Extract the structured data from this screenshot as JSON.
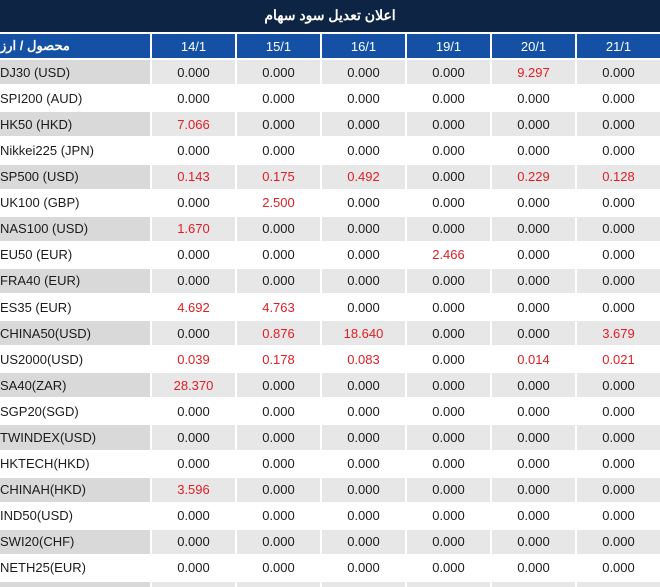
{
  "title": "اعلان تعديل سود سهام",
  "table": {
    "name_header": "محصول / ارز",
    "date_headers": [
      "14/1",
      "15/1",
      "16/1",
      "19/1",
      "20/1",
      "21/1"
    ],
    "rows": [
      {
        "name": "DJ30 (USD)",
        "values": [
          "0.000",
          "0.000",
          "0.000",
          "0.000",
          "9.297",
          "0.000"
        ]
      },
      {
        "name": "SPI200 (AUD)",
        "values": [
          "0.000",
          "0.000",
          "0.000",
          "0.000",
          "0.000",
          "0.000"
        ]
      },
      {
        "name": "HK50 (HKD)",
        "values": [
          "7.066",
          "0.000",
          "0.000",
          "0.000",
          "0.000",
          "0.000"
        ]
      },
      {
        "name": "Nikkei225 (JPN)",
        "values": [
          "0.000",
          "0.000",
          "0.000",
          "0.000",
          "0.000",
          "0.000"
        ]
      },
      {
        "name": "SP500 (USD)",
        "values": [
          "0.143",
          "0.175",
          "0.492",
          "0.000",
          "0.229",
          "0.128"
        ]
      },
      {
        "name": "UK100 (GBP)",
        "values": [
          "0.000",
          "2.500",
          "0.000",
          "0.000",
          "0.000",
          "0.000"
        ]
      },
      {
        "name": "NAS100 (USD)",
        "values": [
          "1.670",
          "0.000",
          "0.000",
          "0.000",
          "0.000",
          "0.000"
        ]
      },
      {
        "name": "EU50 (EUR)",
        "values": [
          "0.000",
          "0.000",
          "0.000",
          "2.466",
          "0.000",
          "0.000"
        ]
      },
      {
        "name": "FRA40 (EUR)",
        "values": [
          "0.000",
          "0.000",
          "0.000",
          "0.000",
          "0.000",
          "0.000"
        ]
      },
      {
        "name": "ES35 (EUR)",
        "values": [
          "4.692",
          "4.763",
          "0.000",
          "0.000",
          "0.000",
          "0.000"
        ]
      },
      {
        "name": "CHINA50(USD)",
        "values": [
          "0.000",
          "0.876",
          "18.640",
          "0.000",
          "0.000",
          "3.679"
        ]
      },
      {
        "name": "US2000(USD)",
        "values": [
          "0.039",
          "0.178",
          "0.083",
          "0.000",
          "0.014",
          "0.021"
        ]
      },
      {
        "name": "SA40(ZAR)",
        "values": [
          "28.370",
          "0.000",
          "0.000",
          "0.000",
          "0.000",
          "0.000"
        ]
      },
      {
        "name": "SGP20(SGD)",
        "values": [
          "0.000",
          "0.000",
          "0.000",
          "0.000",
          "0.000",
          "0.000"
        ]
      },
      {
        "name": "TWINDEX(USD)",
        "values": [
          "0.000",
          "0.000",
          "0.000",
          "0.000",
          "0.000",
          "0.000"
        ]
      },
      {
        "name": "HKTECH(HKD)",
        "values": [
          "0.000",
          "0.000",
          "0.000",
          "0.000",
          "0.000",
          "0.000"
        ]
      },
      {
        "name": "CHINAH(HKD)",
        "values": [
          "3.596",
          "0.000",
          "0.000",
          "0.000",
          "0.000",
          "0.000"
        ]
      },
      {
        "name": "IND50(USD)",
        "values": [
          "0.000",
          "0.000",
          "0.000",
          "0.000",
          "0.000",
          "0.000"
        ]
      },
      {
        "name": "SWI20(CHF)",
        "values": [
          "0.000",
          "0.000",
          "0.000",
          "0.000",
          "0.000",
          "0.000"
        ]
      },
      {
        "name": "NETH25(EUR)",
        "values": [
          "0.000",
          "0.000",
          "0.000",
          "0.000",
          "0.000",
          "0.000"
        ]
      }
    ],
    "zero_value": "0.000"
  },
  "colors": {
    "title_bar_bg": "#0e2444",
    "header_bg": "#1451a4",
    "stripe_name_bg": "#d9d9d9",
    "stripe_value_bg": "#e7e7e7",
    "value_text": "#1b1b1b",
    "nonzero_text": "#e01e25"
  }
}
